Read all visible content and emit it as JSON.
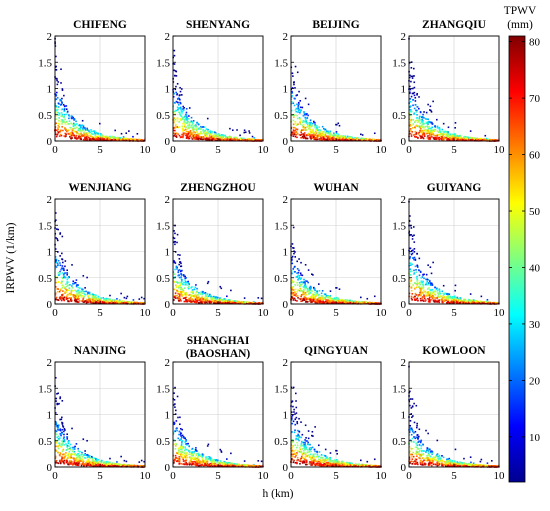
{
  "chart_data": [
    {
      "type": "scatter",
      "title": "CHIFENG",
      "xlim": [
        0,
        10
      ],
      "ylim": [
        0,
        2
      ],
      "xticks": [
        0,
        5,
        10
      ],
      "yticks": [
        0,
        0.5,
        1,
        1.5,
        2
      ],
      "grid": true,
      "color_by": "TPWV"
    },
    {
      "type": "scatter",
      "title": "SHENYANG",
      "xlim": [
        0,
        10
      ],
      "ylim": [
        0,
        2
      ],
      "xticks": [
        0,
        5,
        10
      ],
      "yticks": [
        0,
        0.5,
        1,
        1.5,
        2
      ],
      "grid": true,
      "color_by": "TPWV"
    },
    {
      "type": "scatter",
      "title": "BEIJING",
      "xlim": [
        0,
        10
      ],
      "ylim": [
        0,
        2
      ],
      "xticks": [
        0,
        5,
        10
      ],
      "yticks": [
        0,
        0.5,
        1,
        1.5,
        2
      ],
      "grid": true,
      "color_by": "TPWV"
    },
    {
      "type": "scatter",
      "title": "ZHANGQIU",
      "xlim": [
        0,
        10
      ],
      "ylim": [
        0,
        2
      ],
      "xticks": [
        0,
        5,
        10
      ],
      "yticks": [
        0,
        0.5,
        1,
        1.5,
        2
      ],
      "grid": true,
      "color_by": "TPWV"
    },
    {
      "type": "scatter",
      "title": "WENJIANG",
      "xlim": [
        0,
        10
      ],
      "ylim": [
        0,
        2
      ],
      "xticks": [
        0,
        5,
        10
      ],
      "yticks": [
        0,
        0.5,
        1,
        1.5,
        2
      ],
      "grid": true,
      "color_by": "TPWV"
    },
    {
      "type": "scatter",
      "title": "ZHENGZHOU",
      "xlim": [
        0,
        10
      ],
      "ylim": [
        0,
        2
      ],
      "xticks": [
        0,
        5,
        10
      ],
      "yticks": [
        0,
        0.5,
        1,
        1.5,
        2
      ],
      "grid": true,
      "color_by": "TPWV"
    },
    {
      "type": "scatter",
      "title": "WUHAN",
      "xlim": [
        0,
        10
      ],
      "ylim": [
        0,
        2
      ],
      "xticks": [
        0,
        5,
        10
      ],
      "yticks": [
        0,
        0.5,
        1,
        1.5,
        2
      ],
      "grid": true,
      "color_by": "TPWV"
    },
    {
      "type": "scatter",
      "title": "GUIYANG",
      "xlim": [
        0,
        10
      ],
      "ylim": [
        0,
        2
      ],
      "xticks": [
        0,
        5,
        10
      ],
      "yticks": [
        0,
        0.5,
        1,
        1.5,
        2
      ],
      "grid": true,
      "color_by": "TPWV"
    },
    {
      "type": "scatter",
      "title": "NANJING",
      "xlim": [
        0,
        10
      ],
      "ylim": [
        0,
        2
      ],
      "xticks": [
        0,
        5,
        10
      ],
      "yticks": [
        0,
        0.5,
        1,
        1.5,
        2
      ],
      "grid": true,
      "color_by": "TPWV"
    },
    {
      "type": "scatter",
      "title": "SHANGHAI",
      "title_line2": "(BAOSHAN)",
      "xlim": [
        0,
        10
      ],
      "ylim": [
        0,
        2
      ],
      "xticks": [
        0,
        5,
        10
      ],
      "yticks": [
        0,
        0.5,
        1,
        1.5,
        2
      ],
      "grid": true,
      "color_by": "TPWV"
    },
    {
      "type": "scatter",
      "title": "QINGYUAN",
      "xlim": [
        0,
        10
      ],
      "ylim": [
        0,
        2
      ],
      "xticks": [
        0,
        5,
        10
      ],
      "yticks": [
        0,
        0.5,
        1,
        1.5,
        2
      ],
      "grid": true,
      "color_by": "TPWV"
    },
    {
      "type": "scatter",
      "title": "KOWLOON",
      "xlim": [
        0,
        10
      ],
      "ylim": [
        0,
        2
      ],
      "xticks": [
        0,
        5,
        10
      ],
      "yticks": [
        0,
        0.5,
        1,
        1.5,
        2
      ],
      "grid": true,
      "color_by": "TPWV"
    }
  ],
  "shared": {
    "xlabel": "h (km)",
    "ylabel": "IRPWV (1/km)",
    "tick_labels_x": [
      "0",
      "5",
      "10"
    ],
    "tick_labels_y": [
      "0",
      "0.5",
      "1",
      "1.5",
      "2"
    ]
  },
  "colorbar": {
    "title_line1": "TPWV",
    "title_line2": "(mm)",
    "range": [
      2,
      81
    ],
    "ticks": [
      10,
      20,
      30,
      40,
      50,
      60,
      70,
      80
    ],
    "tick_labels": [
      "10",
      "20",
      "30",
      "40",
      "50",
      "60",
      "70",
      "80"
    ],
    "colormap": "jet"
  }
}
